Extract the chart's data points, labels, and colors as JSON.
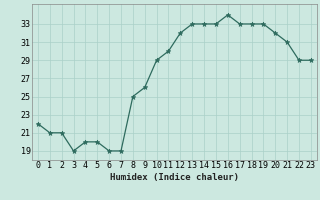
{
  "x": [
    0,
    1,
    2,
    3,
    4,
    5,
    6,
    7,
    8,
    9,
    10,
    11,
    12,
    13,
    14,
    15,
    16,
    17,
    18,
    19,
    20,
    21,
    22,
    23
  ],
  "y": [
    22,
    21,
    21,
    19,
    20,
    20,
    19,
    19,
    25,
    26,
    29,
    30,
    32,
    33,
    33,
    33,
    34,
    33,
    33,
    33,
    32,
    31,
    29,
    29
  ],
  "line_color": "#2e6b5e",
  "marker_color": "#2e6b5e",
  "bg_color": "#cce8e0",
  "grid_color": "#aad0c8",
  "xlabel": "Humidex (Indice chaleur)",
  "ylabel_ticks": [
    19,
    21,
    23,
    25,
    27,
    29,
    31,
    33
  ],
  "xtick_labels": [
    "0",
    "1",
    "2",
    "3",
    "4",
    "5",
    "6",
    "7",
    "8",
    "9",
    "10",
    "11",
    "12",
    "13",
    "14",
    "15",
    "16",
    "17",
    "18",
    "19",
    "20",
    "21",
    "22",
    "23"
  ],
  "xlim": [
    -0.5,
    23.5
  ],
  "ylim": [
    18.0,
    35.2
  ],
  "label_fontsize": 6.5,
  "tick_fontsize": 6.0
}
